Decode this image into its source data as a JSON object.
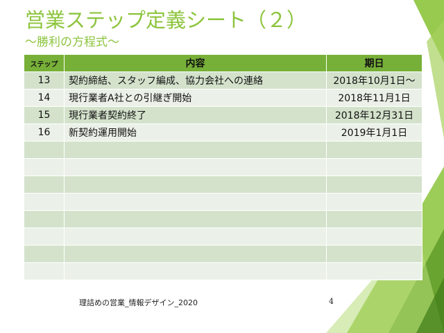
{
  "slide": {
    "title": "営業ステップ定義シート（２）",
    "subtitle": "～勝利の方程式～",
    "footer": "理詰めの営業_情報デザイン_2020",
    "page_number": "4",
    "accent_color": "#8cc43c",
    "header_color": "#77b038"
  },
  "table": {
    "headers": {
      "step": "ステップ",
      "content": "内容",
      "date": "期日"
    },
    "rows": [
      {
        "step": "13",
        "content": "契約締結、スタッフ編成、協力会社への連絡",
        "date": "2018年10月1日～"
      },
      {
        "step": "14",
        "content": "現行業者A社との引継ぎ開始",
        "date": "2018年11月1日"
      },
      {
        "step": "15",
        "content": "現行業者契約終了",
        "date": "2018年12月31日"
      },
      {
        "step": "16",
        "content": "新契約運用開始",
        "date": "2019年1月1日"
      },
      {
        "step": "",
        "content": "",
        "date": ""
      },
      {
        "step": "",
        "content": "",
        "date": ""
      },
      {
        "step": "",
        "content": "",
        "date": ""
      },
      {
        "step": "",
        "content": "",
        "date": ""
      },
      {
        "step": "",
        "content": "",
        "date": ""
      },
      {
        "step": "",
        "content": "",
        "date": ""
      },
      {
        "step": "",
        "content": "",
        "date": ""
      },
      {
        "step": "",
        "content": "",
        "date": ""
      }
    ]
  }
}
